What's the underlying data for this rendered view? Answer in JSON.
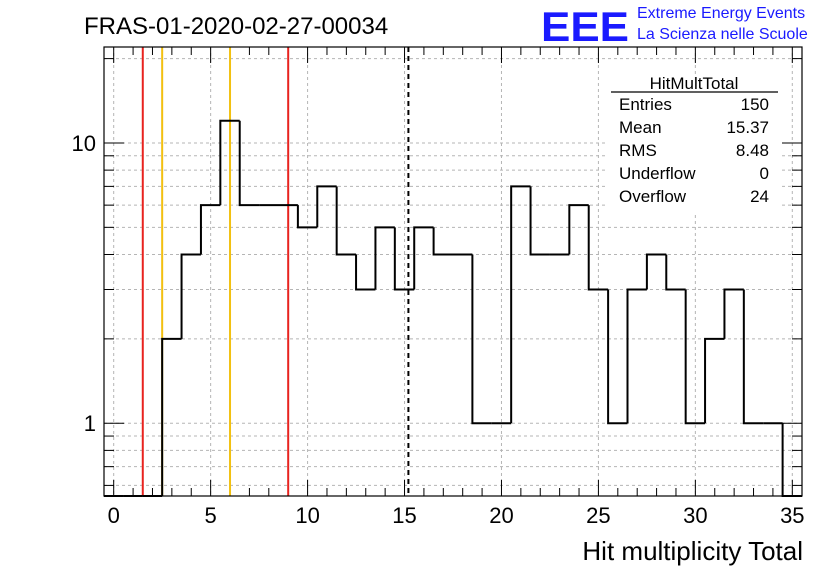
{
  "chart_data": {
    "type": "bar",
    "style": "step-histogram",
    "title": "FRAS-01-2020-02-27-00034",
    "xlabel": "Hit multiplicity Total",
    "ylabel": "",
    "xlim": [
      -0.5,
      35.5
    ],
    "ylim": [
      0.55,
      22
    ],
    "yscale": "log",
    "grid": true,
    "bins": {
      "low_edges": [
        -0.5,
        0.5,
        1.5,
        2.5,
        3.5,
        4.5,
        5.5,
        6.5,
        7.5,
        8.5,
        9.5,
        10.5,
        11.5,
        12.5,
        13.5,
        14.5,
        15.5,
        16.5,
        17.5,
        18.5,
        19.5,
        20.5,
        21.5,
        22.5,
        23.5,
        24.5,
        25.5,
        26.5,
        27.5,
        28.5,
        29.5,
        30.5,
        31.5,
        32.5,
        33.5,
        34.5
      ],
      "values": [
        0,
        0,
        0,
        2,
        4,
        6,
        12,
        6,
        6,
        6,
        5,
        7,
        4,
        3,
        5,
        3,
        5,
        4,
        4,
        1,
        1,
        7,
        4,
        4,
        6,
        3,
        1,
        3,
        4,
        3,
        1,
        2,
        3,
        1,
        1,
        0
      ]
    },
    "x_ticks": [
      "0",
      "5",
      "10",
      "15",
      "20",
      "25",
      "30",
      "35"
    ],
    "y_ticks": [
      "1",
      "10"
    ],
    "vertical_lines": [
      {
        "x": 1.5,
        "color": "#e8231f",
        "style": "solid"
      },
      {
        "x": 2.5,
        "color": "#f2c010",
        "style": "solid"
      },
      {
        "x": 6.0,
        "color": "#f2c010",
        "style": "solid"
      },
      {
        "x": 9.0,
        "color": "#e8231f",
        "style": "solid"
      },
      {
        "x": 15.2,
        "color": "#000000",
        "style": "dashed"
      }
    ],
    "stats_box": {
      "name": "HitMultTotal",
      "rows": [
        {
          "label": "Entries",
          "value": "150"
        },
        {
          "label": "Mean",
          "value": "15.37"
        },
        {
          "label": "RMS",
          "value": "8.48"
        },
        {
          "label": "Underflow",
          "value": "0"
        },
        {
          "label": "Overflow",
          "value": "24"
        }
      ]
    }
  },
  "logo": {
    "mark": "EEE",
    "line1": "Extreme Energy Events",
    "line2": "La Scienza nelle Scuole",
    "color": "#1a1aff"
  }
}
